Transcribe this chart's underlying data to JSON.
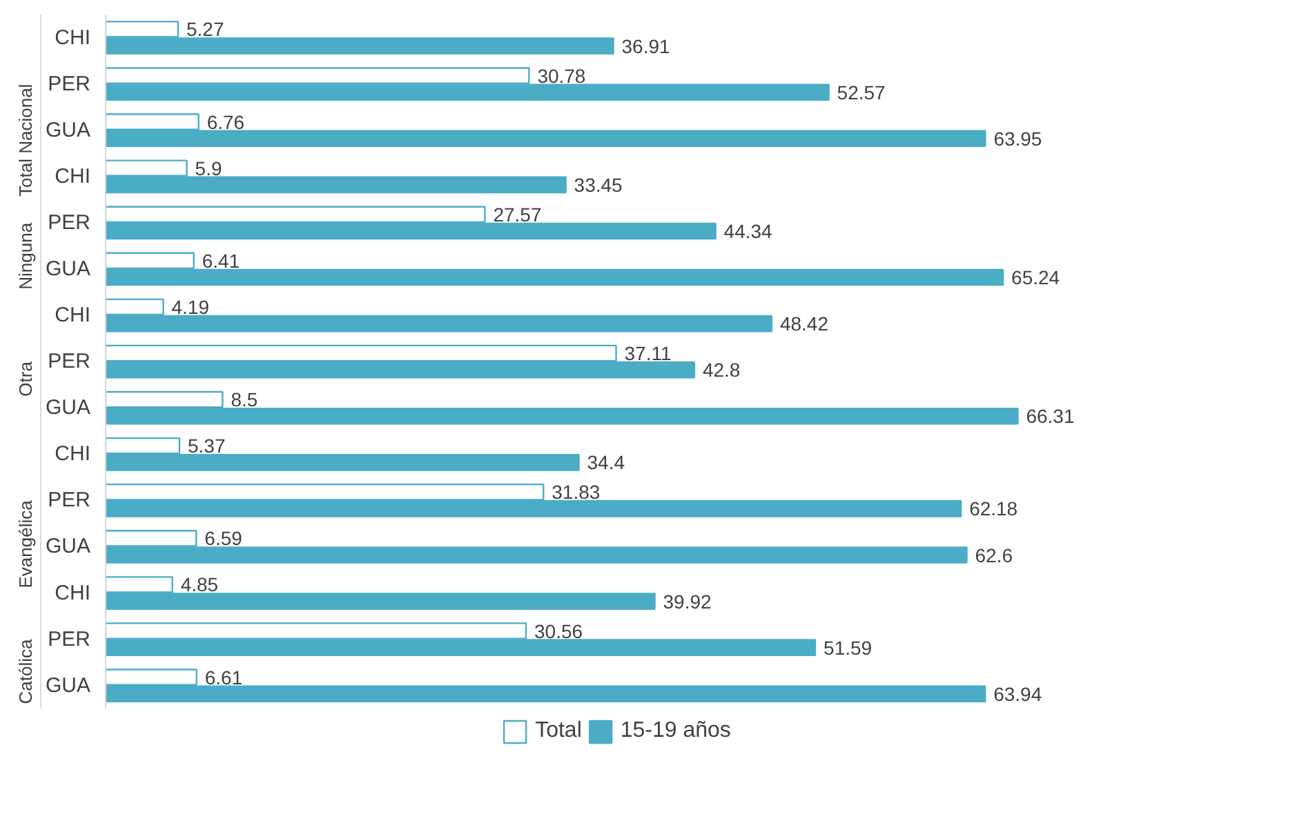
{
  "chart_data": {
    "type": "bar",
    "orientation": "horizontal",
    "categories": [
      "CHI",
      "PER",
      "GUA",
      "CHI",
      "PER",
      "GUA",
      "CHI",
      "PER",
      "GUA",
      "CHI",
      "PER",
      "GUA",
      "CHI",
      "PER",
      "GUA"
    ],
    "annotations": [
      "Total Nacional",
      "Ninguna",
      "Otra",
      "Evangélica",
      "Católica"
    ],
    "series": [
      {
        "name": "Total",
        "color": "#ffffff",
        "values": [
          5.27,
          30.78,
          6.76,
          5.9,
          27.57,
          6.41,
          4.19,
          37.11,
          8.5,
          5.37,
          31.83,
          6.59,
          4.85,
          30.56,
          6.61
        ]
      },
      {
        "name": "15-19 años",
        "color": "#4bacc6",
        "values": [
          36.91,
          52.57,
          63.95,
          33.45,
          44.34,
          65.24,
          48.42,
          42.8,
          66.31,
          34.4,
          62.18,
          62.6,
          39.92,
          51.59,
          63.94
        ]
      }
    ],
    "data_labels": true,
    "legend": "bottom",
    "grid": false
  }
}
